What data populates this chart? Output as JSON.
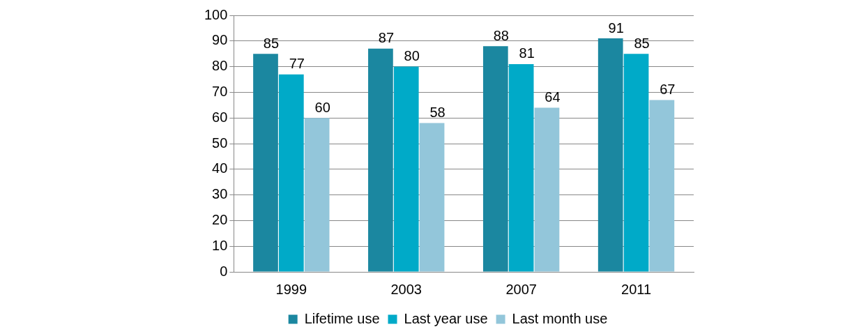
{
  "chart_data": {
    "type": "bar",
    "categories": [
      "1999",
      "2003",
      "2007",
      "2011"
    ],
    "series": [
      {
        "name": "Lifetime use",
        "color": "#1b87a0",
        "values": [
          85,
          87,
          88,
          91
        ]
      },
      {
        "name": "Last year use",
        "color": "#00aac8",
        "values": [
          77,
          80,
          81,
          85
        ]
      },
      {
        "name": "Last month use",
        "color": "#93c6da",
        "values": [
          60,
          58,
          64,
          67
        ]
      }
    ],
    "ylim": [
      0,
      100
    ],
    "yticks": [
      0,
      10,
      20,
      30,
      40,
      50,
      60,
      70,
      80,
      90,
      100
    ],
    "grid": "y",
    "legend": "bottom",
    "data_labels": true
  }
}
